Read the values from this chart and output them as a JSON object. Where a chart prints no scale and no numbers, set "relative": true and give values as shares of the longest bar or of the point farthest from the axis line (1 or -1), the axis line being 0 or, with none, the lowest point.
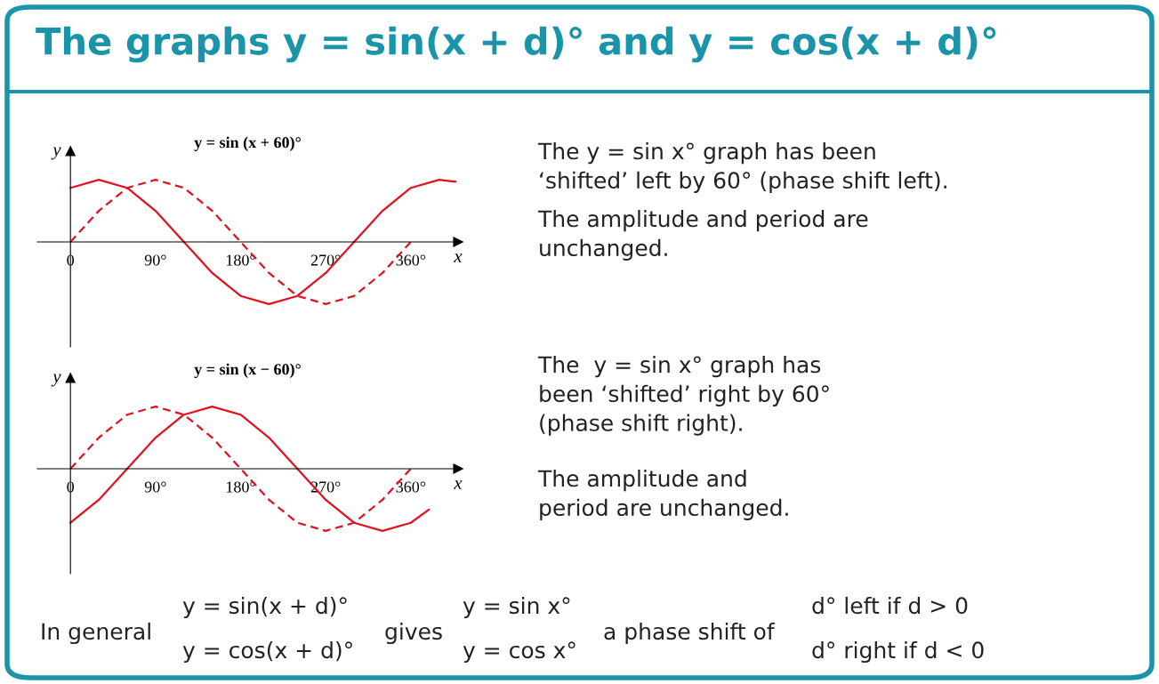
{
  "chart_data": [
    {
      "type": "other",
      "title": "The graphs y = sin(x + d)° and y = cos(x + d)°"
    },
    {
      "type": "line",
      "title": "y = sin (x + 60)°",
      "xlabel": "x",
      "ylabel": "y",
      "relative": true,
      "xlim": [
        -35,
        410
      ],
      "xticks": [
        {
          "value": 0,
          "label": "0"
        },
        {
          "value": 90,
          "label": "90°"
        },
        {
          "value": 180,
          "label": "180°"
        },
        {
          "value": 270,
          "label": "270°"
        },
        {
          "value": 360,
          "label": "360°"
        }
      ],
      "series": [
        {
          "color": "#e3101e",
          "line_style": "solid",
          "x": [
            0,
            30,
            60,
            90,
            120,
            150,
            180,
            210,
            240,
            270,
            300,
            330,
            360,
            390,
            407
          ],
          "values": [
            0.87,
            1,
            0.87,
            0.5,
            0,
            -0.5,
            -0.87,
            -1,
            -0.87,
            -0.5,
            0,
            0.5,
            0.87,
            1,
            0.97
          ]
        },
        {
          "color": "#e3101e",
          "line_style": "dashed",
          "x": [
            0,
            30,
            60,
            90,
            120,
            150,
            180,
            210,
            240,
            270,
            300,
            330,
            360
          ],
          "values": [
            0,
            0.5,
            0.87,
            1,
            0.87,
            0.5,
            0,
            -0.5,
            -0.87,
            -1,
            -0.87,
            -0.5,
            0
          ]
        }
      ],
      "annotations": [
        "The y = sin x° graph has been\n‘shifted’ left by 60° (phase shift left).",
        "The amplitude and period are\nunchanged."
      ]
    },
    {
      "type": "line",
      "title": "y = sin (x − 60)°",
      "xlabel": "x",
      "ylabel": "y",
      "relative": true,
      "xlim": [
        -35,
        410
      ],
      "xticks": [
        {
          "value": 0,
          "label": "0"
        },
        {
          "value": 90,
          "label": "90°"
        },
        {
          "value": 180,
          "label": "180°"
        },
        {
          "value": 270,
          "label": "270°"
        },
        {
          "value": 360,
          "label": "360°"
        }
      ],
      "series": [
        {
          "color": "#e3101e",
          "line_style": "solid",
          "x": [
            0,
            30,
            60,
            90,
            120,
            150,
            180,
            210,
            240,
            270,
            300,
            330,
            360,
            379
          ],
          "values": [
            -0.87,
            -0.5,
            0,
            0.5,
            0.87,
            1,
            0.87,
            0.5,
            0,
            -0.5,
            -0.87,
            -1,
            -0.87,
            -0.66
          ]
        },
        {
          "color": "#e3101e",
          "line_style": "dashed",
          "x": [
            0,
            30,
            60,
            90,
            120,
            150,
            180,
            210,
            240,
            270,
            300,
            330,
            360
          ],
          "values": [
            0,
            0.5,
            0.87,
            1,
            0.87,
            0.5,
            0,
            -0.5,
            -0.87,
            -1,
            -0.87,
            -0.5,
            0
          ]
        }
      ],
      "annotations": [
        "The  y = sin x° graph has\nbeen ‘shifted’ right by 60°\n(phase shift right).",
        "The amplitude and\nperiod are unchanged."
      ]
    },
    {
      "type": "other",
      "annotations": [
        "In general",
        "y = sin(x + d)°",
        "y = cos(x + d)°",
        "gives",
        "y = sin x°",
        "y = cos x°",
        "a phase shift of",
        "d° left if d > 0",
        "d° right if d < 0"
      ]
    }
  ]
}
